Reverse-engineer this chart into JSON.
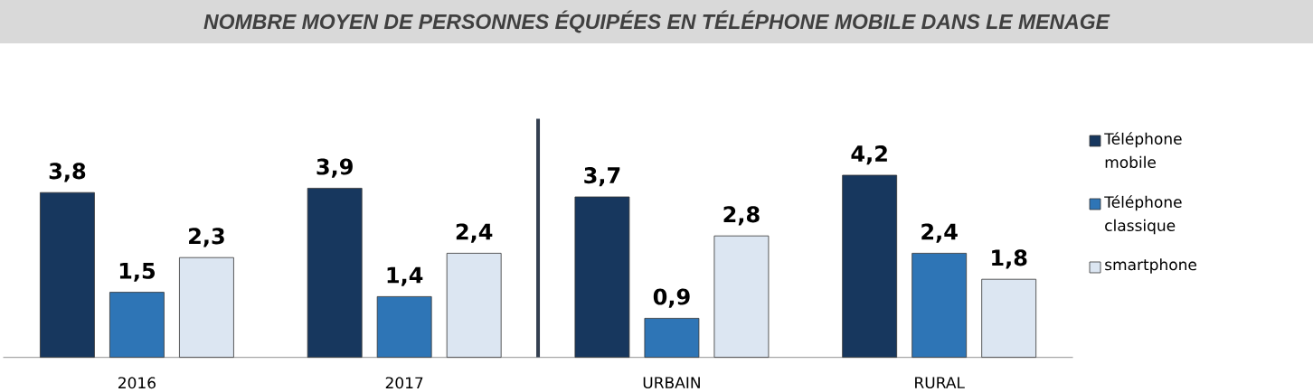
{
  "chart_data": {
    "type": "bar",
    "title": "NOMBRE MOYEN DE PERSONNES ÉQUIPÉES EN TÉLÉPHONE MOBILE DANS LE MENAGE",
    "categories": [
      "2016",
      "2017",
      "URBAIN",
      "RURAL"
    ],
    "series": [
      {
        "name": "Téléphone mobile",
        "color": "#17375e",
        "values": [
          3.8,
          3.9,
          3.7,
          4.2
        ],
        "value_labels": [
          "3,8",
          "3,9",
          "3,7",
          "4,2"
        ]
      },
      {
        "name": "Téléphone classique",
        "color": "#2e75b6",
        "values": [
          1.5,
          1.4,
          0.9,
          2.4
        ],
        "value_labels": [
          "1,5",
          "1,4",
          "0,9",
          "2,4"
        ]
      },
      {
        "name": "smartphone",
        "color": "#dce6f2",
        "values": [
          2.3,
          2.4,
          2.8,
          1.8
        ],
        "value_labels": [
          "2,3",
          "2,4",
          "2,8",
          "1,8"
        ]
      }
    ],
    "ylim": [
      0,
      5.5
    ],
    "tick_labels": "x",
    "legend": "right"
  }
}
